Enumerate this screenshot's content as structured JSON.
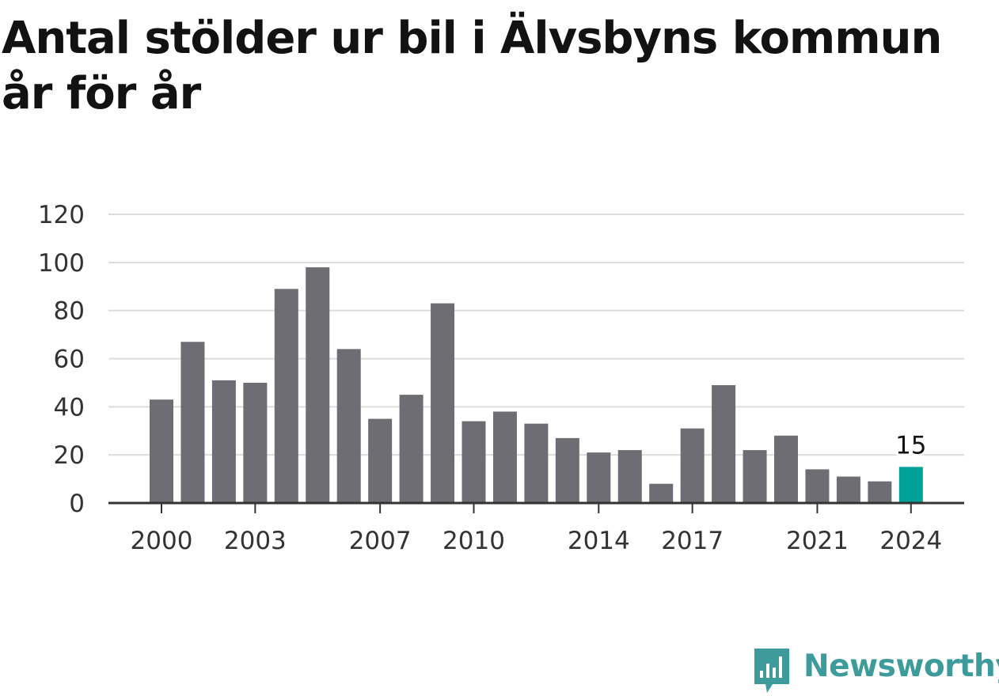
{
  "title": "Antal stölder ur bil i Älvsbyns kommun år för år",
  "brand": {
    "name": "Newsworthy",
    "icon": "newsworthy-logo-icon"
  },
  "colors": {
    "bar": "#6e6d73",
    "highlight": "#00a096",
    "grid": "#dcdcdc",
    "axis": "#333333",
    "brand": "#3d9b9b"
  },
  "chart_data": {
    "type": "bar",
    "title": "Antal stölder ur bil i Älvsbyns kommun år för år",
    "xlabel": "",
    "ylabel": "",
    "ylim": [
      0,
      120
    ],
    "yticks": [
      0,
      20,
      40,
      60,
      80,
      100,
      120
    ],
    "grid": true,
    "categories": [
      2000,
      2001,
      2002,
      2003,
      2004,
      2005,
      2006,
      2007,
      2008,
      2009,
      2010,
      2011,
      2012,
      2013,
      2014,
      2015,
      2016,
      2017,
      2018,
      2019,
      2020,
      2021,
      2022,
      2023,
      2024
    ],
    "values": [
      43,
      67,
      51,
      50,
      89,
      98,
      64,
      35,
      45,
      83,
      34,
      38,
      33,
      27,
      21,
      22,
      8,
      31,
      49,
      22,
      28,
      14,
      11,
      9,
      15
    ],
    "xtick_labels": [
      "2000",
      "2003",
      "2007",
      "2010",
      "2014",
      "2017",
      "2021",
      "2024"
    ],
    "highlight": {
      "category": 2024,
      "label": "15"
    }
  }
}
